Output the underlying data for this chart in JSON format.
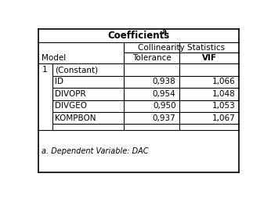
{
  "title": "Coefficients",
  "title_superscript": "a",
  "col_header_span": "Collinearity Statistics",
  "col1_header": "Model",
  "col2_header": "Tolerance",
  "col3_header": "VIF",
  "rows": [
    {
      "model_num": "1",
      "label": "(Constant)",
      "tolerance": "",
      "vif": ""
    },
    {
      "model_num": "",
      "label": "ID",
      "tolerance": "0,938",
      "vif": "1,066"
    },
    {
      "model_num": "",
      "label": "DIVOPR",
      "tolerance": "0,954",
      "vif": "1,048"
    },
    {
      "model_num": "",
      "label": "DIVGEO",
      "tolerance": "0,950",
      "vif": "1,053"
    },
    {
      "model_num": "",
      "label": "KOMPBON",
      "tolerance": "0,937",
      "vif": "1,067"
    }
  ],
  "footnote": "a. Dependent Variable: DAC",
  "bg_color": "#ffffff",
  "border_color": "#000000",
  "font_size": 7.5,
  "title_font_size": 8.5
}
